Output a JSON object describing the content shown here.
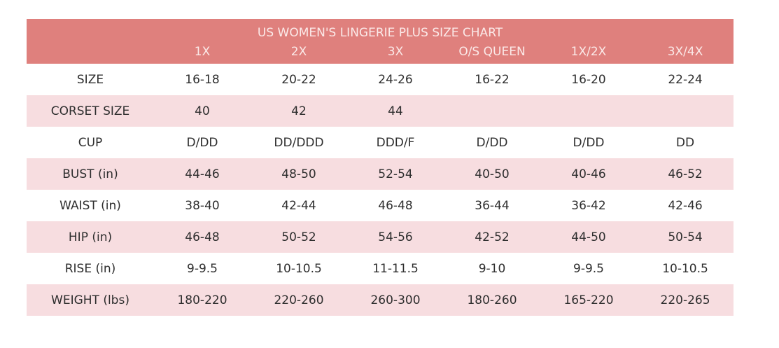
{
  "title": "US WOMEN'S LINGERIE PLUS SIZE CHART",
  "columns": [
    "1X",
    "2X",
    "3X",
    "O/S QUEEN",
    "1X/2X",
    "3X/4X"
  ],
  "colors": {
    "header": "#df807d",
    "alt_row": "#f7dde0"
  },
  "rows": [
    {
      "label": "SIZE",
      "values": [
        "16-18",
        "20-22",
        "24-26",
        "16-22",
        "16-20",
        "22-24"
      ]
    },
    {
      "label": "CORSET SIZE",
      "values": [
        "40",
        "42",
        "44",
        "",
        "",
        ""
      ]
    },
    {
      "label": "CUP",
      "values": [
        "D/DD",
        "DD/DDD",
        "DDD/F",
        "D/DD",
        "D/DD",
        "DD"
      ]
    },
    {
      "label": "BUST (in)",
      "values": [
        "44-46",
        "48-50",
        "52-54",
        "40-50",
        "40-46",
        "46-52"
      ]
    },
    {
      "label": "WAIST (in)",
      "values": [
        "38-40",
        "42-44",
        "46-48",
        "36-44",
        "36-42",
        "42-46"
      ]
    },
    {
      "label": "HIP (in)",
      "values": [
        "46-48",
        "50-52",
        "54-56",
        "42-52",
        "44-50",
        "50-54"
      ]
    },
    {
      "label": "RISE (in)",
      "values": [
        "9-9.5",
        "10-10.5",
        "11-11.5",
        "9-10",
        "9-9.5",
        "10-10.5"
      ]
    },
    {
      "label": "WEIGHT (lbs)",
      "values": [
        "180-220",
        "220-260",
        "260-300",
        "180-260",
        "165-220",
        "220-265"
      ]
    }
  ]
}
